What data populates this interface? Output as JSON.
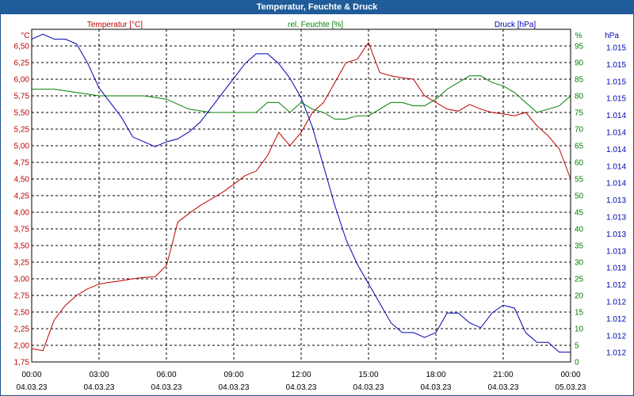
{
  "window": {
    "title": "Temperatur, Feuchte & Druck"
  },
  "colors": {
    "temperature": "#c00000",
    "humidity": "#008000",
    "pressure": "#0000b0",
    "titlebar": "#1f5c99"
  },
  "chart_data": {
    "type": "line",
    "title": "Temperatur, Feuchte & Druck",
    "x_hours": [
      0,
      3,
      6,
      9,
      12,
      15,
      18,
      21,
      24
    ],
    "x_tick_times": [
      "00:00",
      "03:00",
      "06:00",
      "09:00",
      "12:00",
      "15:00",
      "18:00",
      "21:00",
      "00:00"
    ],
    "x_tick_dates": [
      "04.03.23",
      "04.03.23",
      "04.03.23",
      "04.03.23",
      "04.03.23",
      "04.03.23",
      "04.03.23",
      "04.03.23",
      "05.03.23"
    ],
    "axes": {
      "temperature": {
        "label": "Temperatur [°C]",
        "unit": "°C",
        "min": 1.75,
        "max": 6.75,
        "ticks": [
          "6,50",
          "6,25",
          "6,00",
          "5,75",
          "5,50",
          "5,25",
          "5,00",
          "4,75",
          "4,50",
          "4,25",
          "4,00",
          "3,75",
          "3,50",
          "3,25",
          "3,00",
          "2,75",
          "2,50",
          "2,25",
          "2,00",
          "1,75"
        ]
      },
      "humidity": {
        "label": "rel. Feuchte [%]",
        "unit": "%",
        "min": 0,
        "max": 100,
        "ticks": [
          "95",
          "90",
          "85",
          "80",
          "75",
          "70",
          "65",
          "60",
          "55",
          "50",
          "45",
          "40",
          "35",
          "30",
          "25",
          "20",
          "15",
          "10",
          "5",
          "0"
        ]
      },
      "pressure": {
        "label": "Druck [hPa]",
        "unit": "hPa",
        "min": 1011.8,
        "max": 1015.2,
        "ticks": [
          "1.015",
          "1.015",
          "1.015",
          "1.015",
          "1.014",
          "1.014",
          "1.014",
          "1.014",
          "1.014",
          "1.013",
          "1.013",
          "1.013",
          "1.013",
          "1.013",
          "1.012",
          "1.012",
          "1.012",
          "1.012",
          "1.012"
        ]
      }
    },
    "series": [
      {
        "name": "Temperatur [°C]",
        "axis": "temperature",
        "x": [
          0,
          0.5,
          1,
          1.5,
          2,
          2.5,
          3,
          3.5,
          4,
          4.5,
          5,
          5.5,
          6,
          6.2,
          6.5,
          7,
          7.5,
          8,
          8.5,
          9,
          9.5,
          10,
          10.5,
          11,
          11.5,
          12,
          12.5,
          13,
          13.5,
          14,
          14.5,
          15,
          15.5,
          16,
          16.5,
          17,
          17.5,
          18,
          18.5,
          19,
          19.5,
          20,
          20.5,
          21,
          21.5,
          22,
          22.5,
          23,
          23.5,
          24
        ],
        "values": [
          1.95,
          1.92,
          2.38,
          2.6,
          2.75,
          2.85,
          2.92,
          2.95,
          2.97,
          3.0,
          3.02,
          3.03,
          3.2,
          3.45,
          3.85,
          3.98,
          4.1,
          4.2,
          4.3,
          4.42,
          4.55,
          4.62,
          4.85,
          5.2,
          5.0,
          5.2,
          5.5,
          5.65,
          5.95,
          6.25,
          6.3,
          6.55,
          6.1,
          6.05,
          6.02,
          6.0,
          5.75,
          5.65,
          5.55,
          5.52,
          5.62,
          5.55,
          5.5,
          5.48,
          5.45,
          5.5,
          5.3,
          5.15,
          4.95,
          4.5
        ]
      },
      {
        "name": "rel. Feuchte [%]",
        "axis": "humidity",
        "x": [
          0,
          1,
          2,
          3,
          4,
          5,
          6,
          7,
          8,
          9,
          10,
          10.5,
          11,
          11.5,
          12,
          12.5,
          13,
          13.5,
          14,
          14.5,
          15,
          15.5,
          16,
          16.5,
          17,
          17.5,
          18,
          18.5,
          19,
          19.5,
          20,
          20.5,
          21,
          21.5,
          22,
          22.5,
          23,
          23.5,
          24
        ],
        "values": [
          82,
          82,
          81,
          80,
          80,
          80,
          79,
          76,
          75,
          75,
          75,
          78,
          78,
          75,
          78,
          76,
          75,
          73,
          73,
          74,
          74,
          76,
          78,
          78,
          77,
          77,
          79,
          82,
          84,
          86,
          86,
          84,
          83,
          81,
          78,
          75,
          76,
          77,
          80
        ]
      },
      {
        "name": "Druck [hPa]",
        "axis": "pressure",
        "x": [
          0,
          0.5,
          1,
          1.5,
          2,
          2.5,
          3,
          3.5,
          4,
          4.5,
          5,
          5.5,
          6,
          6.5,
          7,
          7.5,
          8,
          8.5,
          9,
          9.5,
          10,
          10.5,
          11,
          11.5,
          12,
          12.5,
          13,
          13.5,
          14,
          14.5,
          15,
          15.5,
          16,
          16.5,
          17,
          17.5,
          18,
          18.5,
          19,
          19.5,
          20,
          20.5,
          21,
          21.5,
          22,
          22.5,
          23,
          23.5,
          24
        ],
        "values": [
          1015.1,
          1015.15,
          1015.1,
          1015.1,
          1015.05,
          1014.85,
          1014.6,
          1014.45,
          1014.3,
          1014.1,
          1014.05,
          1014.0,
          1014.05,
          1014.08,
          1014.15,
          1014.25,
          1014.4,
          1014.55,
          1014.7,
          1014.85,
          1014.95,
          1014.95,
          1014.85,
          1014.7,
          1014.5,
          1014.2,
          1013.8,
          1013.4,
          1013.05,
          1012.8,
          1012.6,
          1012.4,
          1012.2,
          1012.1,
          1012.1,
          1012.05,
          1012.1,
          1012.3,
          1012.3,
          1012.2,
          1012.15,
          1012.3,
          1012.38,
          1012.35,
          1012.1,
          1012.0,
          1012.0,
          1011.9,
          1011.9
        ]
      }
    ]
  }
}
